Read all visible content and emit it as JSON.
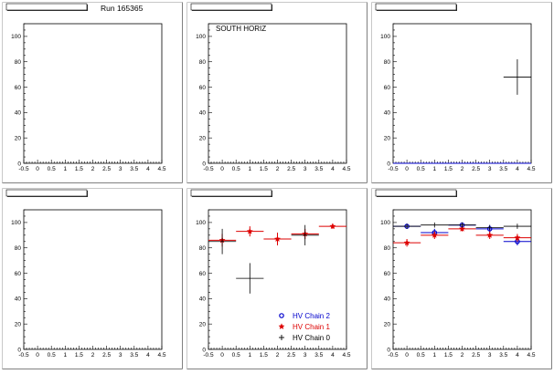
{
  "run_label": "Run 165365",
  "chart_data": [
    {
      "type": "scatter",
      "title": "",
      "xlim": [
        -0.5,
        4.5
      ],
      "ylim": [
        0,
        110
      ],
      "xticks": [
        "-0.5",
        "0",
        "0.5",
        "1",
        "1.5",
        "2",
        "2.5",
        "3",
        "3.5",
        "4",
        "4.5"
      ],
      "yticks": [
        "0",
        "20",
        "40",
        "60",
        "80",
        "100"
      ],
      "annotation": "",
      "series": []
    },
    {
      "type": "scatter",
      "title": "",
      "xlim": [
        -0.5,
        4.5
      ],
      "ylim": [
        0,
        110
      ],
      "xticks": [
        "-0.5",
        "0",
        "0.5",
        "1",
        "1.5",
        "2",
        "2.5",
        "3",
        "3.5",
        "4",
        "4.5"
      ],
      "yticks": [
        "0",
        "20",
        "40",
        "60",
        "80",
        "100"
      ],
      "annotation": "SOUTH HORIZ",
      "series": []
    },
    {
      "type": "scatter",
      "title": "",
      "xlim": [
        -0.5,
        4.5
      ],
      "ylim": [
        0,
        110
      ],
      "xticks": [
        "-0.5",
        "0",
        "0.5",
        "1",
        "1.5",
        "2",
        "2.5",
        "3",
        "3.5",
        "4",
        "4.5"
      ],
      "yticks": [
        "0",
        "20",
        "40",
        "60",
        "80",
        "100"
      ],
      "annotation": "",
      "series": [
        {
          "marker": "cross",
          "color": "#000000",
          "points": [
            {
              "x": 4,
              "y": 68,
              "xerr": 0.5,
              "yerr": 14
            }
          ]
        },
        {
          "marker": "baseline",
          "color": "#0000cc",
          "points": [
            {
              "x": 2,
              "y": 0,
              "xerr": 2.5,
              "yerr": 0
            }
          ]
        }
      ]
    },
    {
      "type": "scatter",
      "title": "",
      "xlim": [
        -0.5,
        4.5
      ],
      "ylim": [
        0,
        110
      ],
      "xticks": [
        "-0.5",
        "0",
        "0.5",
        "1",
        "1.5",
        "2",
        "2.5",
        "3",
        "3.5",
        "4",
        "4.5"
      ],
      "yticks": [
        "0",
        "20",
        "40",
        "60",
        "80",
        "100"
      ],
      "annotation": "",
      "series": []
    },
    {
      "type": "scatter",
      "title": "",
      "xlim": [
        -0.5,
        4.5
      ],
      "ylim": [
        0,
        110
      ],
      "xticks": [
        "-0.5",
        "0",
        "0.5",
        "1",
        "1.5",
        "2",
        "2.5",
        "3",
        "3.5",
        "4",
        "4.5"
      ],
      "yticks": [
        "0",
        "20",
        "40",
        "60",
        "80",
        "100"
      ],
      "annotation": "",
      "legend": {
        "placement": "bottom-right",
        "entries": [
          {
            "label": "HV Chain 2",
            "color": "#0000cc",
            "marker": "circle"
          },
          {
            "label": "HV Chain 1",
            "color": "#dd0000",
            "marker": "star"
          },
          {
            "label": "HV Chain 0",
            "color": "#000000",
            "marker": "cross"
          }
        ]
      },
      "series": [
        {
          "marker": "star",
          "color": "#dd0000",
          "points": [
            {
              "x": 0,
              "y": 86,
              "xerr": 0.5,
              "yerr": 5
            },
            {
              "x": 1,
              "y": 93,
              "xerr": 0.5,
              "yerr": 4
            },
            {
              "x": 2,
              "y": 87,
              "xerr": 0.5,
              "yerr": 5
            },
            {
              "x": 3,
              "y": 91,
              "xerr": 0.5,
              "yerr": 4
            },
            {
              "x": 4,
              "y": 97,
              "xerr": 0.5,
              "yerr": 2
            }
          ]
        },
        {
          "marker": "cross",
          "color": "#000000",
          "points": [
            {
              "x": 0,
              "y": 85,
              "xerr": 0.5,
              "yerr": 10
            },
            {
              "x": 1,
              "y": 56,
              "xerr": 0.5,
              "yerr": 12
            },
            {
              "x": 3,
              "y": 90,
              "xerr": 0.5,
              "yerr": 8
            }
          ]
        }
      ]
    },
    {
      "type": "scatter",
      "title": "",
      "xlim": [
        -0.5,
        4.5
      ],
      "ylim": [
        0,
        110
      ],
      "xticks": [
        "-0.5",
        "0",
        "0.5",
        "1",
        "1.5",
        "2",
        "2.5",
        "3",
        "3.5",
        "4",
        "4.5"
      ],
      "yticks": [
        "0",
        "20",
        "40",
        "60",
        "80",
        "100"
      ],
      "annotation": "",
      "series": [
        {
          "marker": "circle",
          "color": "#0000cc",
          "points": [
            {
              "x": 0,
              "y": 97,
              "xerr": 0.5,
              "yerr": 2
            },
            {
              "x": 1,
              "y": 92,
              "xerr": 0.5,
              "yerr": 3
            },
            {
              "x": 2,
              "y": 98,
              "xerr": 0.5,
              "yerr": 2
            },
            {
              "x": 3,
              "y": 95,
              "xerr": 0.5,
              "yerr": 3
            },
            {
              "x": 4,
              "y": 85,
              "xerr": 0.5,
              "yerr": 3
            }
          ]
        },
        {
          "marker": "star",
          "color": "#dd0000",
          "points": [
            {
              "x": 0,
              "y": 84,
              "xerr": 0.5,
              "yerr": 3
            },
            {
              "x": 1,
              "y": 90,
              "xerr": 0.5,
              "yerr": 3
            },
            {
              "x": 2,
              "y": 95,
              "xerr": 0.5,
              "yerr": 2
            },
            {
              "x": 3,
              "y": 90,
              "xerr": 0.5,
              "yerr": 3
            },
            {
              "x": 4,
              "y": 88,
              "xerr": 0.5,
              "yerr": 3
            }
          ]
        },
        {
          "marker": "cross",
          "color": "#000000",
          "points": [
            {
              "x": 0,
              "y": 97,
              "xerr": 0.5,
              "yerr": 2
            },
            {
              "x": 1,
              "y": 98,
              "xerr": 0.5,
              "yerr": 2
            },
            {
              "x": 2,
              "y": 98,
              "xerr": 0.5,
              "yerr": 2
            },
            {
              "x": 3,
              "y": 96,
              "xerr": 0.5,
              "yerr": 2
            },
            {
              "x": 4,
              "y": 97,
              "xerr": 0.5,
              "yerr": 2
            }
          ]
        }
      ]
    }
  ]
}
